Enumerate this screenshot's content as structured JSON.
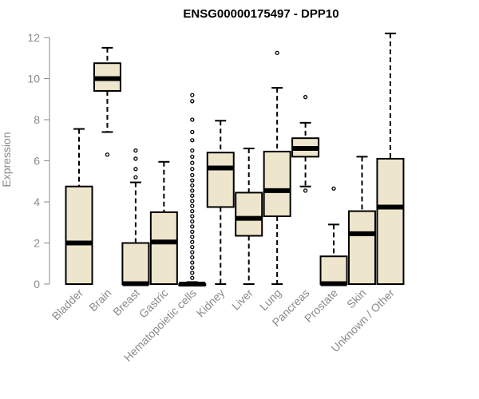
{
  "chart_data": {
    "type": "boxplot",
    "title": "ENSG00000175497 - DPP10",
    "ylabel": "Expression",
    "xlabel": "",
    "ylim": [
      0,
      12.4
    ],
    "yticks": [
      0,
      2,
      4,
      6,
      8,
      10,
      12
    ],
    "grid": false,
    "box_fill": "#ede6cc",
    "categories": [
      "Bladder",
      "Brain",
      "Breast",
      "Gastric",
      "Hematopoietic cells",
      "Kidney",
      "Liver",
      "Lung",
      "Pancreas",
      "Prostate",
      "Skin",
      "Unknown / Other"
    ],
    "boxes": [
      {
        "min": 0,
        "q1": 0,
        "median": 2.0,
        "q3": 4.75,
        "max": 7.55,
        "outliers": []
      },
      {
        "min": 7.4,
        "q1": 9.4,
        "median": 10.0,
        "q3": 10.75,
        "max": 11.5,
        "outliers": [
          6.3
        ]
      },
      {
        "min": 0,
        "q1": 0,
        "median": 0.02,
        "q3": 2.0,
        "max": 4.95,
        "outliers": [
          5.2,
          5.6,
          6.1,
          6.5
        ]
      },
      {
        "min": 0,
        "q1": 0,
        "median": 2.05,
        "q3": 3.5,
        "max": 5.95,
        "outliers": []
      },
      {
        "min": 0,
        "q1": 0,
        "median": 0,
        "q3": 0,
        "max": 0.1,
        "outliers": [
          0.3,
          0.55,
          0.8,
          1.05,
          1.3,
          1.55,
          1.8,
          2.05,
          2.3,
          2.55,
          2.8,
          3.05,
          3.3,
          3.55,
          3.8,
          4.05,
          4.3,
          4.55,
          4.8,
          5.05,
          5.3,
          5.6,
          5.9,
          6.2,
          6.5,
          7.0,
          7.4,
          8.0,
          8.9,
          9.2
        ]
      },
      {
        "min": 0,
        "q1": 3.75,
        "median": 5.65,
        "q3": 6.4,
        "max": 7.95,
        "outliers": []
      },
      {
        "min": 0,
        "q1": 2.35,
        "median": 3.2,
        "q3": 4.45,
        "max": 6.6,
        "outliers": []
      },
      {
        "min": 0,
        "q1": 3.3,
        "median": 4.55,
        "q3": 6.45,
        "max": 9.55,
        "outliers": [
          11.25
        ]
      },
      {
        "min": 4.75,
        "q1": 6.2,
        "median": 6.6,
        "q3": 7.1,
        "max": 7.85,
        "outliers": [
          4.55,
          9.1
        ]
      },
      {
        "min": 0,
        "q1": 0,
        "median": 0.02,
        "q3": 1.35,
        "max": 2.9,
        "outliers": [
          4.65
        ]
      },
      {
        "min": 0,
        "q1": 0,
        "median": 2.45,
        "q3": 3.55,
        "max": 6.2,
        "outliers": []
      },
      {
        "min": 0,
        "q1": 0,
        "median": 3.75,
        "q3": 6.1,
        "max": 12.2,
        "outliers": []
      }
    ]
  }
}
